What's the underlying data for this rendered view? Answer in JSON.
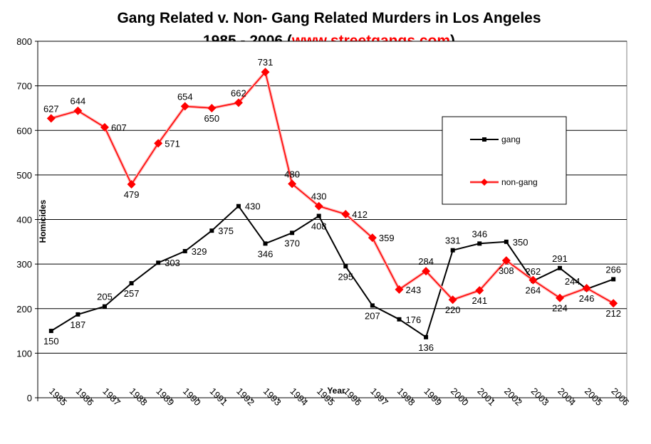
{
  "chart_data": {
    "type": "line",
    "title_line1": "Gang Related v. Non- Gang Related Murders in Los Angeles",
    "title_line2_prefix": "1985 - 2006 (",
    "title_line2_link": "www.streetgangs.com",
    "title_line2_suffix": ")",
    "xlabel": "Year",
    "ylabel": "Homicides",
    "ylim": [
      0,
      800
    ],
    "yticks": [
      0,
      100,
      200,
      300,
      400,
      500,
      600,
      700,
      800
    ],
    "grid": true,
    "legend_position": "top-right",
    "categories": [
      "1985",
      "1986",
      "1987",
      "1988",
      "1989",
      "1990",
      "1991",
      "1992",
      "1993",
      "1994",
      "1995",
      "1996",
      "1997",
      "1998",
      "1999",
      "2000",
      "2001",
      "2002",
      "2003",
      "2004",
      "2005",
      "2006"
    ],
    "series": [
      {
        "name": "gang",
        "color": "#000000",
        "marker": "square",
        "values": [
          150,
          187,
          205,
          257,
          303,
          329,
          375,
          430,
          346,
          370,
          408,
          295,
          207,
          176,
          136,
          331,
          346,
          350,
          262,
          291,
          244,
          266
        ]
      },
      {
        "name": "non-gang",
        "color": "#ff0000",
        "marker": "diamond",
        "values": [
          627,
          644,
          607,
          479,
          571,
          654,
          650,
          662,
          731,
          480,
          430,
          412,
          359,
          243,
          284,
          220,
          241,
          308,
          264,
          224,
          246,
          212
        ]
      }
    ]
  }
}
